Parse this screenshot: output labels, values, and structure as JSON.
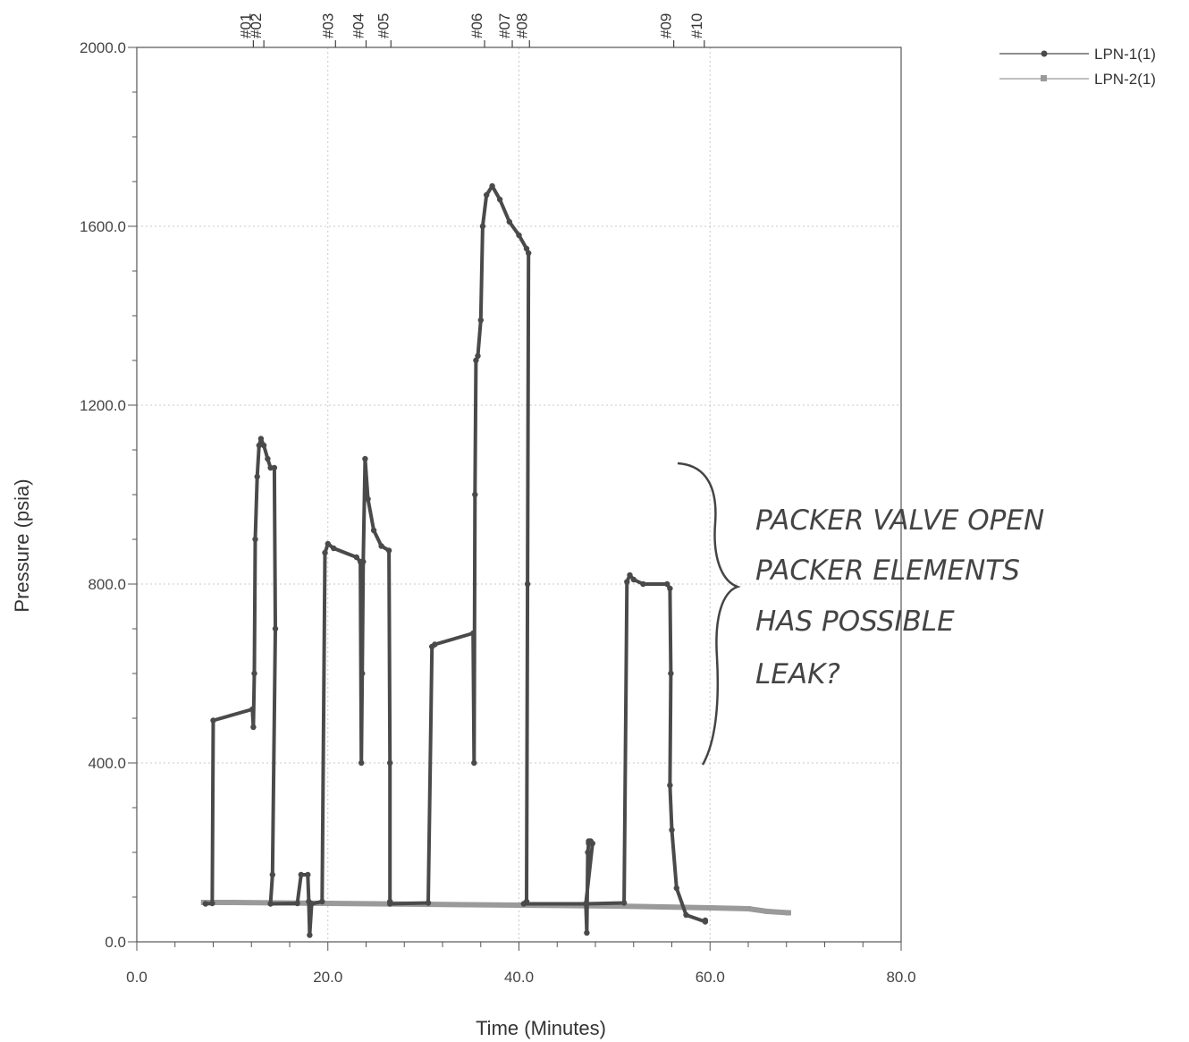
{
  "chart_data": {
    "type": "line",
    "xlabel": "Time (Minutes)",
    "ylabel": "Pressure (psia)",
    "xlim": [
      0,
      80
    ],
    "ylim": [
      0,
      2000
    ],
    "x_ticks": [
      "0.0",
      "20.0",
      "40.0",
      "60.0",
      "80.0"
    ],
    "y_ticks": [
      "0.0",
      "400.0",
      "800.0",
      "1200.0",
      "1600.0",
      "2000.0"
    ],
    "grid": true,
    "legend_position": "top-right",
    "event_markers": [
      {
        "label": "#01",
        "x": 12.2
      },
      {
        "label": "#02",
        "x": 13.3
      },
      {
        "label": "#03",
        "x": 20.8
      },
      {
        "label": "#04",
        "x": 24.0
      },
      {
        "label": "#05",
        "x": 26.6
      },
      {
        "label": "#06",
        "x": 36.4
      },
      {
        "label": "#07",
        "x": 39.3
      },
      {
        "label": "#08",
        "x": 41.1
      },
      {
        "label": "#09",
        "x": 56.2
      },
      {
        "label": "#10",
        "x": 59.4
      }
    ],
    "series": [
      {
        "name": "LPN-1(1)",
        "color": "#4a4a4a",
        "x": [
          7.2,
          7.9,
          8.0,
          12.1,
          12.2,
          12.3,
          12.4,
          12.6,
          12.8,
          13.0,
          13.3,
          13.7,
          14.0,
          14.4,
          14.5,
          14.2,
          14.0,
          16.8,
          17.2,
          17.9,
          18.0,
          18.1,
          18.3,
          19.4,
          19.7,
          20.0,
          20.6,
          23.0,
          23.4,
          23.5,
          23.6,
          23.7,
          23.9,
          24.2,
          24.8,
          25.6,
          26.4,
          26.5,
          26.5,
          26.5,
          30.5,
          30.9,
          31.2,
          35.2,
          35.3,
          35.4,
          35.5,
          35.7,
          36.0,
          36.2,
          36.6,
          37.2,
          38.0,
          39.0,
          40.0,
          40.8,
          41.0,
          40.9,
          40.8,
          40.5,
          47.0,
          47.1,
          47.2,
          47.3,
          47.3,
          47.5,
          47.7,
          47.0,
          51.0,
          51.3,
          51.6,
          52.0,
          53.0,
          55.5,
          55.8,
          55.9,
          55.8,
          56.0,
          56.5,
          57.5,
          59.5,
          59.5
        ],
        "y": [
          85,
          86,
          495,
          520,
          480,
          600,
          900,
          1040,
          1110,
          1125,
          1110,
          1080,
          1060,
          1060,
          700,
          150,
          85,
          86,
          150,
          150,
          90,
          15,
          85,
          90,
          870,
          890,
          880,
          860,
          850,
          400,
          600,
          850,
          1080,
          990,
          920,
          885,
          875,
          400,
          90,
          85,
          87,
          660,
          665,
          690,
          400,
          1000,
          1300,
          1310,
          1390,
          1600,
          1670,
          1690,
          1660,
          1610,
          1580,
          1550,
          1540,
          800,
          90,
          85,
          85,
          20,
          200,
          220,
          225,
          225,
          220,
          85,
          87,
          805,
          820,
          810,
          800,
          800,
          790,
          600,
          350,
          250,
          120,
          60,
          45,
          48
        ]
      },
      {
        "name": "LPN-2(1)",
        "color": "#9a9a9a",
        "x": [
          7.0,
          10.0,
          20.0,
          30.0,
          40.0,
          50.0,
          60.0,
          64.0,
          66.0,
          68.2
        ],
        "y": [
          88,
          88,
          86,
          84,
          82,
          80,
          76,
          74,
          68,
          65
        ]
      }
    ]
  },
  "annotation": {
    "lines": [
      "PACKER VALVE OPEN",
      "PACKER ELEMENTS",
      "HAS  POSSIBLE",
      "LEAK?"
    ]
  }
}
